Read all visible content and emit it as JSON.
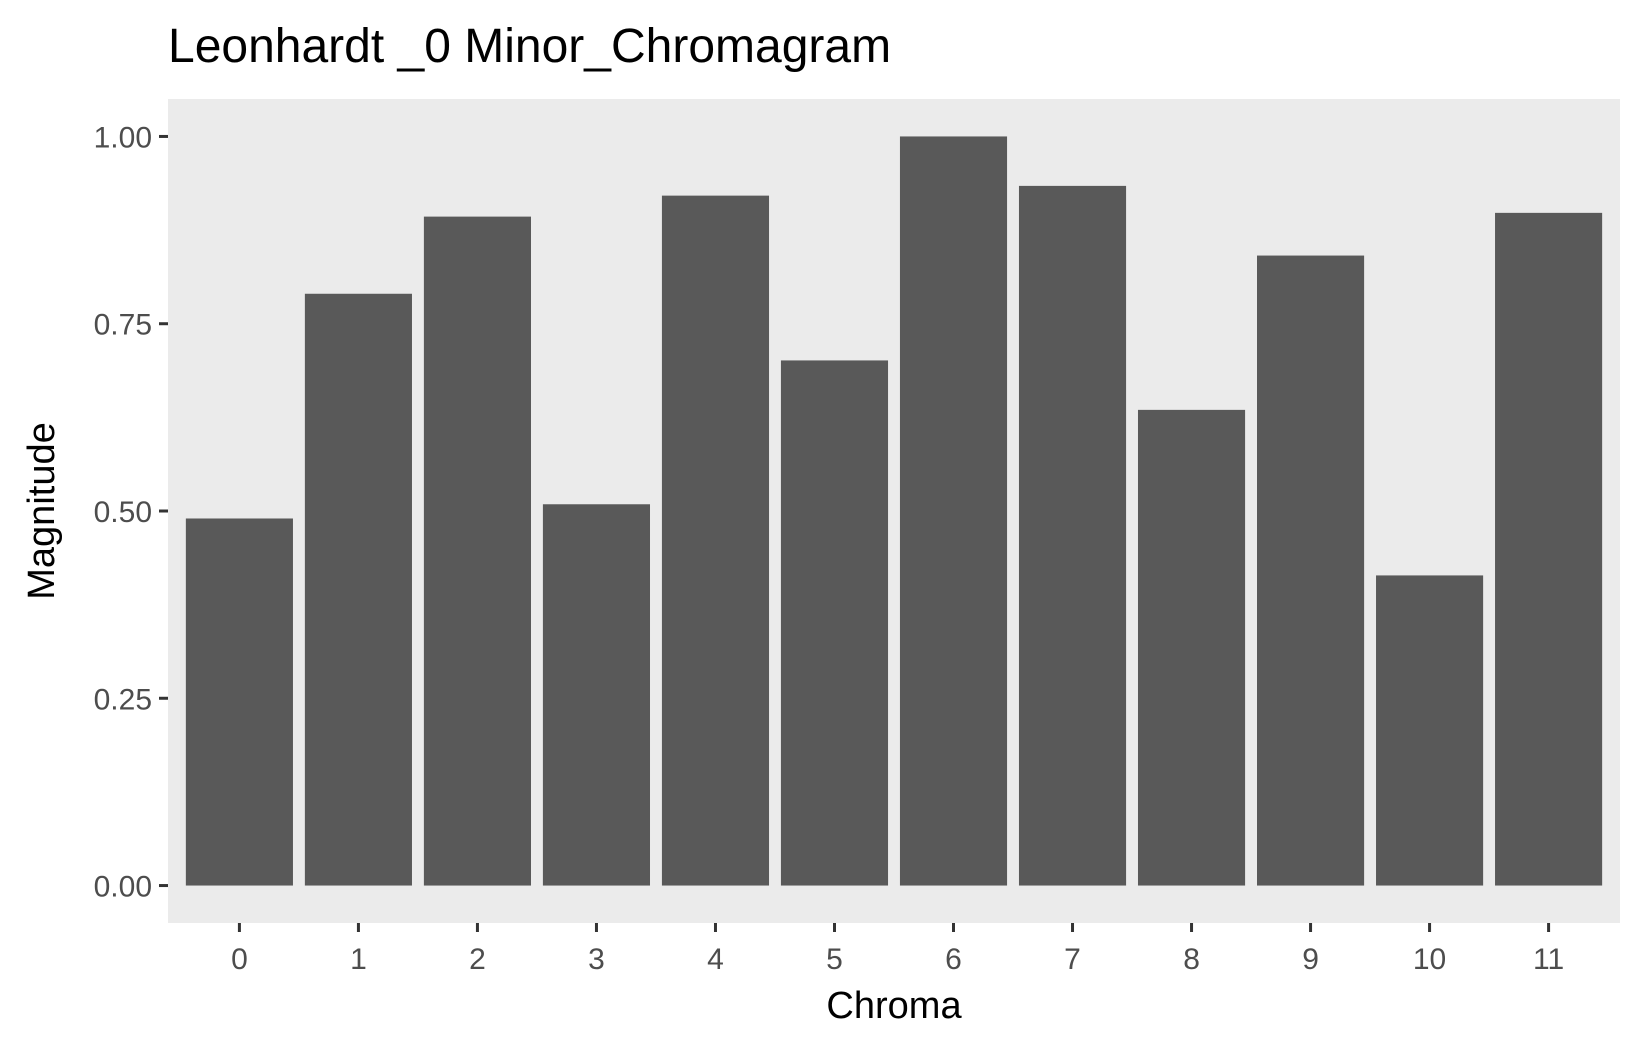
{
  "chart_data": {
    "type": "bar",
    "title": "Leonhardt _0 Minor_Chromagram",
    "xlabel": "Chroma",
    "ylabel": "Magnitude",
    "categories": [
      "0",
      "1",
      "2",
      "3",
      "4",
      "5",
      "6",
      "7",
      "8",
      "9",
      "10",
      "11"
    ],
    "values": [
      0.49,
      0.79,
      0.893,
      0.509,
      0.921,
      0.701,
      1.0,
      0.934,
      0.635,
      0.841,
      0.414,
      0.898
    ],
    "ylim": [
      -0.05,
      1.05
    ],
    "yticks": [
      0,
      0.25,
      0.5,
      0.75,
      1.0
    ],
    "ytick_labels": [
      "0.00",
      "0.25",
      "0.50",
      "0.75",
      "1.00"
    ],
    "grid": false,
    "legend": "none",
    "colors": {
      "bar": "#595959",
      "panel": "#ebebeb",
      "tick": "#333333",
      "tick_label": "#4d4d4d"
    }
  }
}
